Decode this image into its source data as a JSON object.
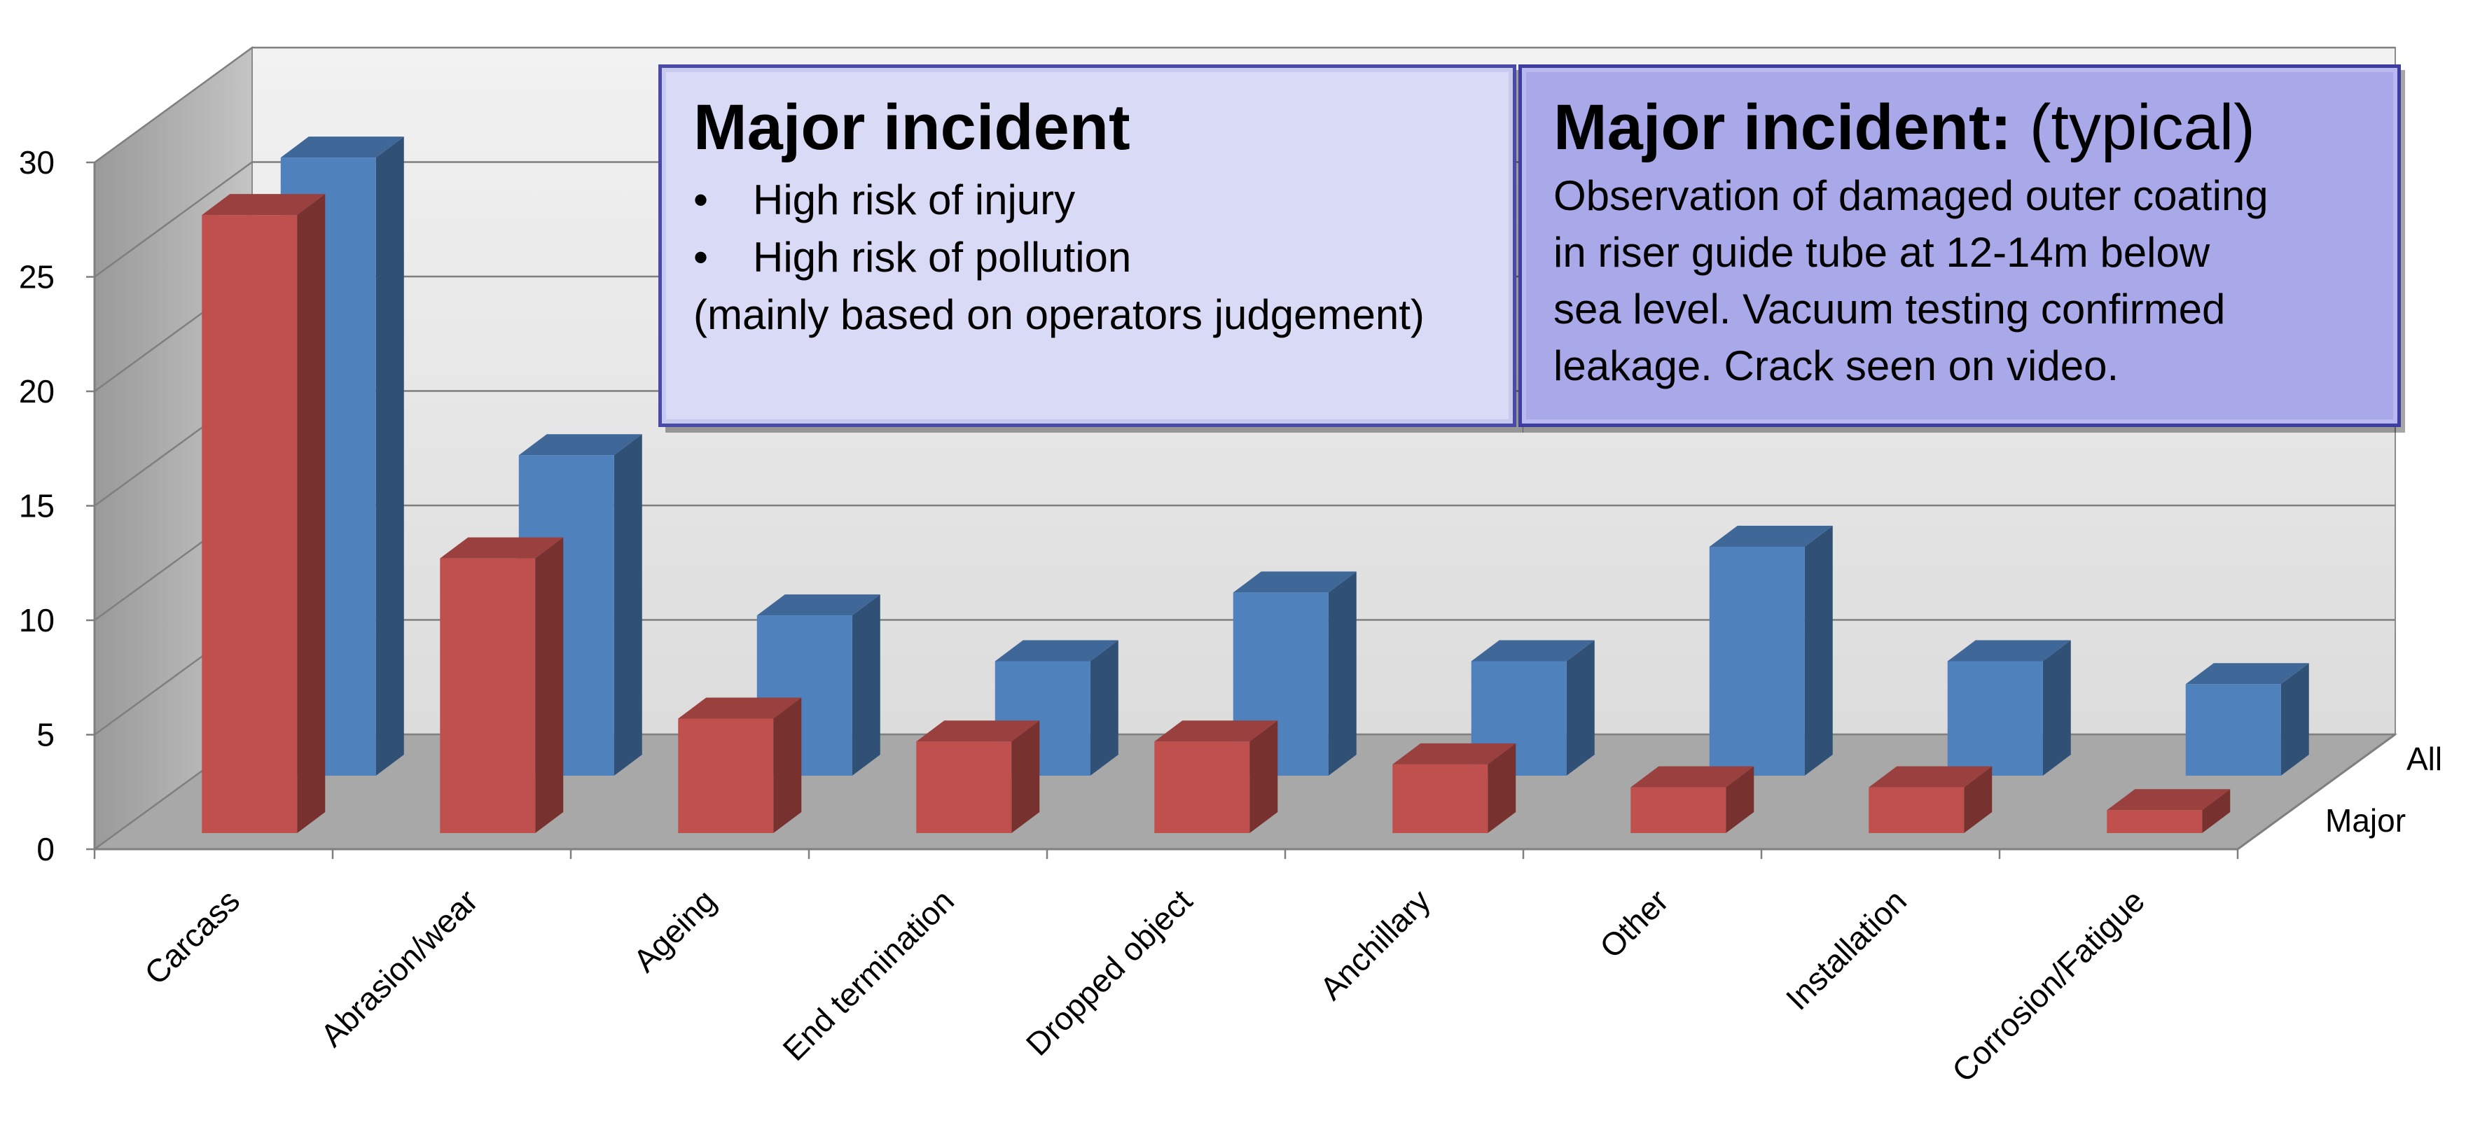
{
  "chart_data": {
    "type": "bar",
    "subtype": "3d-clustered-depth",
    "categories": [
      "Carcass",
      "Abrasion/wear",
      "Ageing",
      "End termination",
      "Dropped object",
      "Anchillary",
      "Other",
      "Installation",
      "Corrosion/Fatigue"
    ],
    "series": [
      {
        "name": "Major",
        "color": "#c0504d",
        "values": [
          27,
          12,
          5,
          4,
          4,
          3,
          2,
          2,
          1
        ]
      },
      {
        "name": "All",
        "color": "#4f81bd",
        "values": [
          27,
          14,
          7,
          5,
          8,
          5,
          10,
          5,
          4
        ]
      }
    ],
    "ylim": [
      0,
      30
    ],
    "yticks": [
      0,
      5,
      10,
      15,
      20,
      25,
      30
    ],
    "grid": true,
    "xlabel": "",
    "ylabel": "",
    "title": ""
  },
  "callouts": {
    "left": {
      "title": "Major incident",
      "bullets": [
        "High risk of injury",
        "High risk of pollution"
      ],
      "bullet_char": "•",
      "note": "(mainly based on operators judgement)"
    },
    "right": {
      "title_bold": "Major incident:",
      "title_normal": " (typical)",
      "lines": [
        "Observation of damaged outer coating",
        "in riser guide tube at 12-14m below",
        "sea level.  Vacuum testing confirmed",
        "leakage. Crack seen on video."
      ]
    }
  }
}
